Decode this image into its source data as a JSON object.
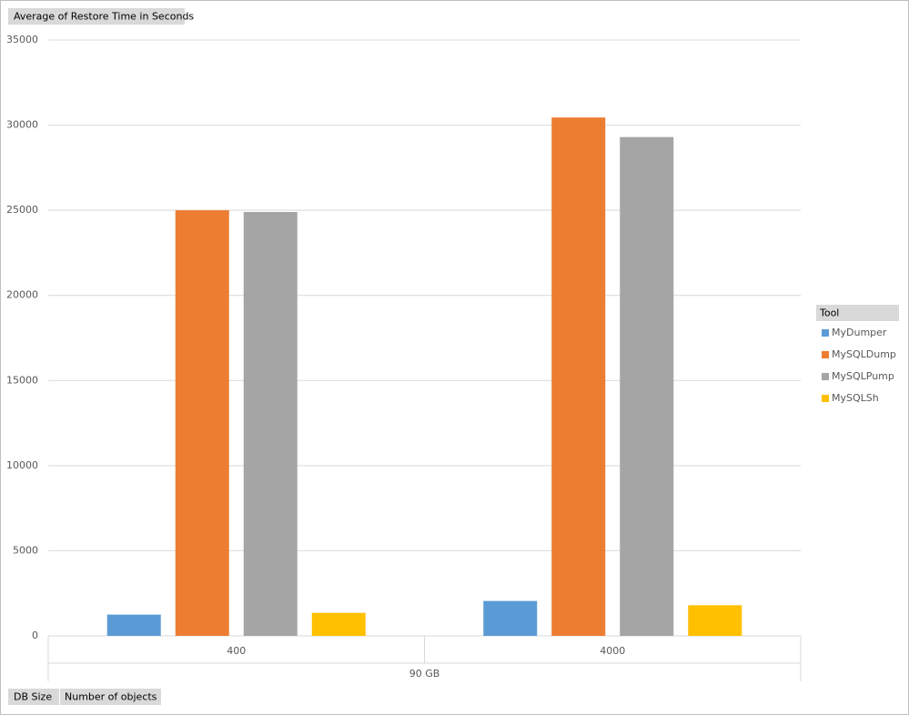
{
  "chart_data": {
    "type": "bar",
    "value_field": "Average of Restore Time in Seconds",
    "row_fields": [
      "DB Size",
      "Number of objects"
    ],
    "group_label": "90 GB",
    "categories": [
      "400",
      "4000"
    ],
    "legend_title": "Tool",
    "series": [
      {
        "name": "MyDumper",
        "color": "#5b9bd5",
        "values": [
          1250,
          2050
        ]
      },
      {
        "name": "MySQLDump",
        "color": "#ed7d31",
        "values": [
          25000,
          30450
        ]
      },
      {
        "name": "MySQLPump",
        "color": "#a5a5a5",
        "values": [
          24900,
          29300
        ]
      },
      {
        "name": "MySQLSh",
        "color": "#ffc000",
        "values": [
          1350,
          1800
        ]
      }
    ],
    "ylim": [
      0,
      35000
    ],
    "yticks": [
      0,
      5000,
      10000,
      15000,
      20000,
      25000,
      30000,
      35000
    ],
    "grid": true,
    "legend_position": "right"
  }
}
